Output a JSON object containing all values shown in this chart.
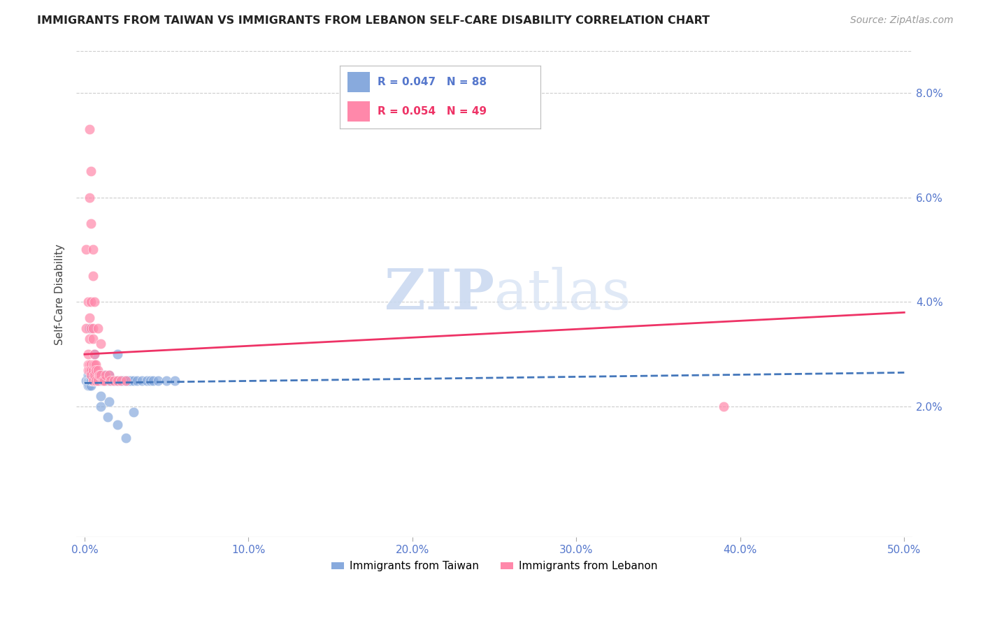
{
  "title": "IMMIGRANTS FROM TAIWAN VS IMMIGRANTS FROM LEBANON SELF-CARE DISABILITY CORRELATION CHART",
  "source": "Source: ZipAtlas.com",
  "ylabel": "Self-Care Disability",
  "yticks": [
    0.0,
    0.02,
    0.04,
    0.06,
    0.08
  ],
  "ytick_labels": [
    "",
    "2.0%",
    "4.0%",
    "6.0%",
    "8.0%"
  ],
  "xticks": [
    0.0,
    0.1,
    0.2,
    0.3,
    0.4,
    0.5
  ],
  "xtick_labels": [
    "0.0%",
    "10.0%",
    "20.0%",
    "30.0%",
    "40.0%",
    "50.0%"
  ],
  "xlim": [
    -0.005,
    0.505
  ],
  "ylim": [
    -0.005,
    0.088
  ],
  "taiwan_color": "#88AADD",
  "lebanon_color": "#FF88AA",
  "taiwan_line_color": "#4477BB",
  "lebanon_line_color": "#EE3366",
  "watermark_zip": "ZIP",
  "watermark_atlas": "atlas",
  "taiwan_scatter_x": [
    0.001,
    0.002,
    0.002,
    0.002,
    0.002,
    0.003,
    0.003,
    0.003,
    0.003,
    0.003,
    0.004,
    0.004,
    0.004,
    0.004,
    0.004,
    0.005,
    0.005,
    0.005,
    0.005,
    0.005,
    0.006,
    0.006,
    0.006,
    0.006,
    0.007,
    0.007,
    0.007,
    0.007,
    0.008,
    0.008,
    0.008,
    0.009,
    0.009,
    0.009,
    0.01,
    0.01,
    0.01,
    0.01,
    0.011,
    0.011,
    0.012,
    0.012,
    0.012,
    0.013,
    0.013,
    0.014,
    0.014,
    0.015,
    0.015,
    0.015,
    0.016,
    0.016,
    0.017,
    0.017,
    0.018,
    0.018,
    0.019,
    0.019,
    0.02,
    0.02,
    0.021,
    0.022,
    0.022,
    0.023,
    0.024,
    0.025,
    0.026,
    0.027,
    0.028,
    0.03,
    0.032,
    0.035,
    0.038,
    0.04,
    0.042,
    0.045,
    0.05,
    0.055,
    0.003,
    0.006,
    0.01,
    0.014,
    0.02,
    0.025,
    0.03,
    0.01,
    0.015,
    0.02
  ],
  "taiwan_scatter_y": [
    0.025,
    0.025,
    0.026,
    0.024,
    0.025,
    0.025,
    0.026,
    0.024,
    0.025,
    0.025,
    0.025,
    0.026,
    0.025,
    0.024,
    0.025,
    0.025,
    0.026,
    0.025,
    0.025,
    0.025,
    0.025,
    0.026,
    0.025,
    0.025,
    0.025,
    0.026,
    0.025,
    0.025,
    0.025,
    0.026,
    0.025,
    0.025,
    0.025,
    0.026,
    0.025,
    0.026,
    0.025,
    0.025,
    0.025,
    0.025,
    0.025,
    0.026,
    0.025,
    0.025,
    0.025,
    0.025,
    0.025,
    0.025,
    0.026,
    0.025,
    0.025,
    0.025,
    0.025,
    0.025,
    0.025,
    0.025,
    0.025,
    0.025,
    0.025,
    0.025,
    0.025,
    0.025,
    0.025,
    0.025,
    0.025,
    0.025,
    0.025,
    0.025,
    0.025,
    0.025,
    0.025,
    0.025,
    0.025,
    0.025,
    0.025,
    0.025,
    0.025,
    0.025,
    0.035,
    0.03,
    0.02,
    0.018,
    0.0165,
    0.014,
    0.019,
    0.022,
    0.021,
    0.03
  ],
  "lebanon_scatter_x": [
    0.001,
    0.001,
    0.002,
    0.002,
    0.002,
    0.002,
    0.003,
    0.003,
    0.003,
    0.003,
    0.004,
    0.004,
    0.004,
    0.004,
    0.004,
    0.005,
    0.005,
    0.005,
    0.005,
    0.005,
    0.006,
    0.006,
    0.006,
    0.007,
    0.007,
    0.007,
    0.008,
    0.008,
    0.009,
    0.01,
    0.011,
    0.012,
    0.013,
    0.015,
    0.016,
    0.018,
    0.02,
    0.022,
    0.025,
    0.003,
    0.004,
    0.005,
    0.006,
    0.003,
    0.004,
    0.005,
    0.008,
    0.01,
    0.39
  ],
  "lebanon_scatter_y": [
    0.05,
    0.035,
    0.04,
    0.03,
    0.028,
    0.027,
    0.037,
    0.033,
    0.028,
    0.027,
    0.04,
    0.035,
    0.028,
    0.027,
    0.026,
    0.035,
    0.033,
    0.028,
    0.027,
    0.025,
    0.03,
    0.028,
    0.026,
    0.028,
    0.027,
    0.025,
    0.027,
    0.025,
    0.026,
    0.026,
    0.025,
    0.025,
    0.026,
    0.026,
    0.025,
    0.025,
    0.025,
    0.025,
    0.025,
    0.06,
    0.055,
    0.045,
    0.04,
    0.073,
    0.065,
    0.05,
    0.035,
    0.032,
    0.02
  ],
  "taiwan_trend_x": [
    0.0,
    0.5
  ],
  "taiwan_trend_y": [
    0.0245,
    0.0265
  ],
  "lebanon_trend_x": [
    0.0,
    0.5
  ],
  "lebanon_trend_y": [
    0.03,
    0.038
  ]
}
